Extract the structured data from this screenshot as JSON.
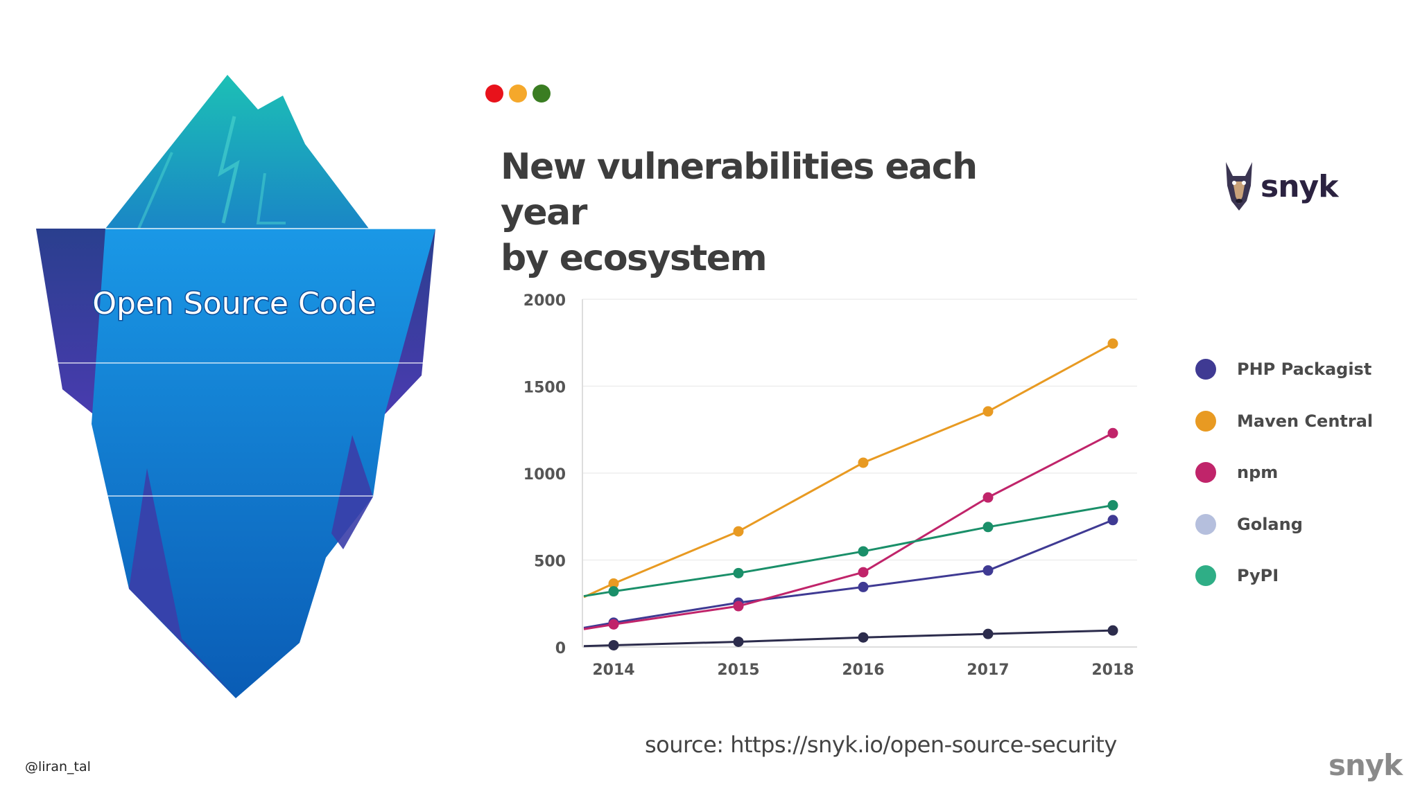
{
  "slide": {
    "iceberg_label": "Open Source Code",
    "source_text": "source: https://snyk.io/open-source-security",
    "handle": "@liran_tal",
    "footer_brand": "snyk"
  },
  "window_dots": [
    {
      "name": "red-dot",
      "color": "#e8121b"
    },
    {
      "name": "yellow-dot",
      "color": "#f5a82b"
    },
    {
      "name": "green-dot",
      "color": "#3a7d22"
    }
  ],
  "brand": {
    "name": "snyk",
    "icon": "doberman-logo-icon"
  },
  "chart_data": {
    "type": "line",
    "title": [
      "New vulnerabilities each year",
      "by ecosystem"
    ],
    "xlabel": "",
    "ylabel": "",
    "x": [
      "2014",
      "2015",
      "2016",
      "2017",
      "2018"
    ],
    "ylim": [
      0,
      2000
    ],
    "yticks": [
      0,
      500,
      1000,
      1500,
      2000
    ],
    "grid": true,
    "legend_position": "right",
    "series": [
      {
        "name": "PHP Packagist",
        "color": "#3f3a93",
        "values": [
          140,
          255,
          345,
          440,
          730
        ]
      },
      {
        "name": "Maven Central",
        "color": "#e89a22",
        "values": [
          365,
          665,
          1060,
          1355,
          1745
        ]
      },
      {
        "name": "npm",
        "color": "#c0246a",
        "values": [
          130,
          235,
          430,
          860,
          1230
        ]
      },
      {
        "name": "Golang",
        "color": "#2c2c4c",
        "values": [
          10,
          30,
          55,
          75,
          95
        ]
      },
      {
        "name": "PyPI",
        "color": "#1a8f69",
        "values": [
          320,
          425,
          550,
          690,
          815
        ]
      }
    ],
    "legend_colors": [
      "#3f3a93",
      "#e89a22",
      "#c0246a",
      "#b5bfdd",
      "#2fae86"
    ]
  }
}
